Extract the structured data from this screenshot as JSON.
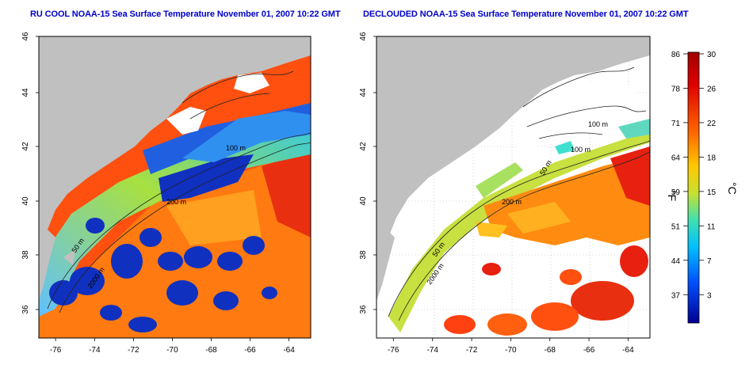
{
  "panels": [
    {
      "title": "RU COOL NOAA-15 Sea Surface Temperature November 01, 2007 10:22 GMT"
    },
    {
      "title": "DECLOUDED NOAA-15 Sea Surface Temperature November 01, 2007 10:22 GMT"
    }
  ],
  "axes": {
    "lat_ticks": [
      "46",
      "44",
      "42",
      "40",
      "38",
      "36"
    ],
    "lon_ticks": [
      "-76",
      "-74",
      "-72",
      "-70",
      "-68",
      "-66",
      "-64"
    ]
  },
  "contour_labels": {
    "left": [
      "100 m",
      "50 m",
      "2000 m",
      "200 m"
    ],
    "right": [
      "100 m",
      "100 m",
      "50 m",
      "200 m",
      "2000 m",
      "50 m"
    ]
  },
  "colorbar": {
    "fahrenheit_ticks": [
      "86",
      "78",
      "71",
      "64",
      "59",
      "51",
      "44",
      "37"
    ],
    "celsius_ticks": [
      "30",
      "26",
      "22",
      "18",
      "15",
      "11",
      "7",
      "3"
    ],
    "unit_f": "°F",
    "unit_c": "°C",
    "colors": [
      "#e00000",
      "#ff7a00",
      "#ffd200",
      "#a8e040",
      "#30e0d0",
      "#0090ff",
      "#0010c0"
    ]
  },
  "colors": {
    "land": "#c0c0c0",
    "title": "#0000c8"
  }
}
